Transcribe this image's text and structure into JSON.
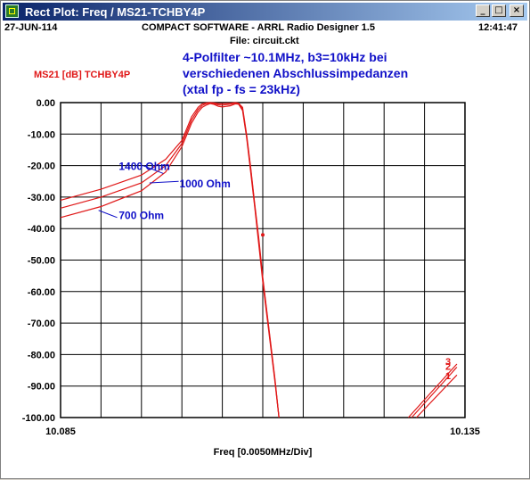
{
  "window": {
    "title": "Rect Plot: Freq / MS21-TCHBY4P",
    "buttons": {
      "minimize": "_",
      "maximize": "□",
      "close": "×"
    }
  },
  "header": {
    "date": "27-JUN-114",
    "app": "COMPACT SOFTWARE - ARRL Radio Designer 1.5",
    "time": "12:41:47",
    "file": "File: circuit.ckt"
  },
  "notes": [
    "4-Polfilter ~10.1MHz,   b3=10kHz    bei",
    "verschiedenen Abschlussimpedanzen",
    "(xtal  fp - fs = 23kHz)"
  ],
  "chart_data": {
    "type": "line",
    "title": "",
    "series_label": "MS21 [dB] TCHBY4P",
    "xlabel": "Freq [0.0050MHz/Div]",
    "x_tick_labels": [
      "10.085",
      "10.135"
    ],
    "y_tick_labels": [
      "0.00",
      "-10.00",
      "-20.00",
      "-30.00",
      "-40.00",
      "-50.00",
      "-60.00",
      "-70.00",
      "-80.00",
      "-90.00",
      "-100.00"
    ],
    "xlim": [
      10.085,
      10.135
    ],
    "ylim": [
      -100,
      0
    ],
    "grid": true,
    "colors": {
      "trace": "#e01818",
      "label": "#e01818",
      "note": "#1010c8",
      "grid": "#000000"
    },
    "series": [
      {
        "name": "1",
        "x": [
          10.085,
          10.09,
          10.095,
          10.098,
          10.1,
          10.1008,
          10.1012,
          10.102,
          10.1025,
          10.103,
          10.1035,
          10.104,
          10.1045,
          10.105,
          10.106,
          10.1066,
          10.107,
          10.1075,
          10.108,
          10.1085,
          10.109,
          10.1095,
          10.11,
          10.1115,
          10.112
        ],
        "y": [
          -36.5,
          -33.0,
          -28.0,
          -22.0,
          -14.0,
          -9.0,
          -6.5,
          -3.0,
          -1.5,
          -0.8,
          -0.3,
          -0.6,
          -1.2,
          -1.4,
          -1.0,
          -0.4,
          -0.5,
          -2.5,
          -11.0,
          -22.0,
          -33.0,
          -45.0,
          -57.0,
          -88.5,
          -100.0
        ]
      },
      {
        "name": "2",
        "x": [
          10.085,
          10.09,
          10.095,
          10.098,
          10.1,
          10.1008,
          10.1012,
          10.102,
          10.1025,
          10.103,
          10.1035,
          10.104,
          10.1045,
          10.105,
          10.106,
          10.1066,
          10.107,
          10.1075,
          10.108,
          10.1085,
          10.109,
          10.1095,
          10.11,
          10.1115,
          10.112
        ],
        "y": [
          -33.5,
          -30.0,
          -25.5,
          -20.0,
          -13.0,
          -8.0,
          -5.5,
          -2.2,
          -0.9,
          -0.3,
          -0.1,
          -0.3,
          -0.7,
          -0.8,
          -0.5,
          -0.2,
          -0.3,
          -2.0,
          -10.5,
          -21.0,
          -32.5,
          -44.0,
          -56.0,
          -88.0,
          -100.0
        ]
      },
      {
        "name": "3",
        "x": [
          10.085,
          10.09,
          10.095,
          10.098,
          10.1,
          10.1008,
          10.1012,
          10.102,
          10.1025,
          10.103,
          10.1035,
          10.104,
          10.1045,
          10.105,
          10.106,
          10.1066,
          10.107,
          10.1075,
          10.108,
          10.1085,
          10.109,
          10.1095,
          10.11,
          10.1115,
          10.112
        ],
        "y": [
          -31.0,
          -27.5,
          -23.0,
          -18.0,
          -12.0,
          -7.0,
          -4.5,
          -1.5,
          -0.4,
          -0.1,
          0.0,
          -0.1,
          -0.3,
          -0.3,
          -0.2,
          0.0,
          -0.2,
          -1.5,
          -10.0,
          -20.5,
          -32.0,
          -43.0,
          -55.5,
          -87.5,
          -100.0
        ]
      }
    ],
    "upper_skirt": [
      {
        "name": "1",
        "x": [
          10.129,
          10.134
        ],
        "y": [
          -100.0,
          -86.5
        ]
      },
      {
        "name": "2",
        "x": [
          10.1284,
          10.134
        ],
        "y": [
          -100.0,
          -84.0
        ]
      },
      {
        "name": "3",
        "x": [
          10.128,
          10.134
        ],
        "y": [
          -100.0,
          -83.0
        ]
      }
    ],
    "end_labels": [
      "3",
      "2",
      "1"
    ],
    "annotations": [
      {
        "text": "1400 Ohm",
        "x": 10.0922,
        "y": -20.0
      },
      {
        "text": "1000 Ohm",
        "x": 10.0997,
        "y": -25.5
      },
      {
        "text": "700 Ohm",
        "x": 10.0922,
        "y": -35.5
      }
    ]
  }
}
